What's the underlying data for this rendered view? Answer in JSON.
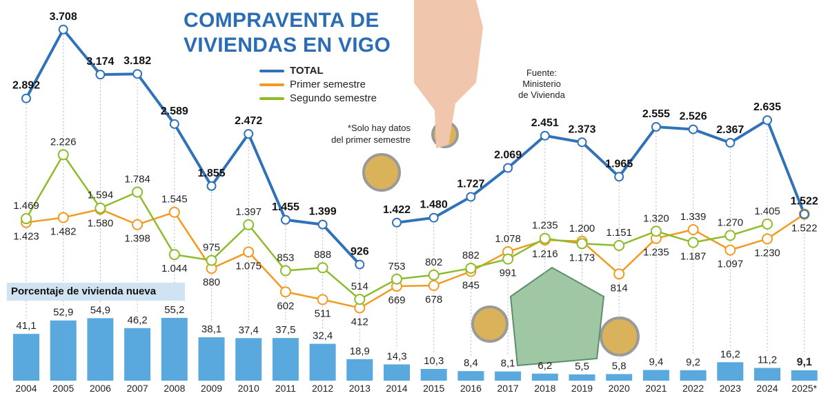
{
  "title_line1": "COMPRAVENTA DE",
  "title_line2": "VIVIENDAS EN VIGO",
  "source": [
    "Fuente:",
    "Ministerio",
    "de Vivienda"
  ],
  "note": [
    "*Solo hay datos",
    "del primer semestre"
  ],
  "colors": {
    "total": "#2f72b8",
    "primer": "#f29a1f",
    "segundo": "#8cbc2a",
    "bars": "#5aa9de",
    "title": "#2b6db5"
  },
  "chart_data": [
    {
      "type": "line",
      "title": "COMPRAVENTA DE VIVIENDAS EN VIGO",
      "categories": [
        "2004",
        "2005",
        "2006",
        "2007",
        "2008",
        "2009",
        "2010",
        "2011",
        "2012",
        "2013",
        "2014",
        "2015",
        "2016",
        "2017",
        "2018",
        "2019",
        "2020",
        "2021",
        "2022",
        "2023",
        "2024",
        "2025*"
      ],
      "legend_position": "top-center",
      "grid": false,
      "series": [
        {
          "name": "TOTAL",
          "labels": [
            "2.892",
            "3.708",
            "3.174",
            "3.182",
            "2.589",
            "1.855",
            "2.472",
            "1.455",
            "1.399",
            "926",
            "1.422",
            "1.480",
            "1.727",
            "2.069",
            "2.451",
            "2.373",
            "1.965",
            "2.555",
            "2.526",
            "2.367",
            "2.635",
            "1.522"
          ],
          "values": [
            2892,
            3708,
            3174,
            3182,
            2589,
            1855,
            2472,
            1455,
            1399,
            926,
            1422,
            1480,
            1727,
            2069,
            2451,
            2373,
            1965,
            2555,
            2526,
            2367,
            2635,
            1522
          ]
        },
        {
          "name": "Primer semestre",
          "labels": [
            "1.423",
            "1.482",
            "1.580",
            "1.398",
            "1.545",
            "880",
            "1.075",
            "602",
            "511",
            "412",
            "669",
            "678",
            "845",
            "1.078",
            "1.216",
            "1.200",
            "814",
            "1.235",
            "1.339",
            "1.097",
            "1.230",
            "1.522"
          ],
          "values": [
            1423,
            1482,
            1580,
            1398,
            1545,
            880,
            1075,
            602,
            511,
            412,
            669,
            678,
            845,
            1078,
            1216,
            1200,
            814,
            1235,
            1339,
            1097,
            1230,
            1522
          ]
        },
        {
          "name": "Segundo semestre",
          "labels": [
            "1.469",
            "2.226",
            "1.594",
            "1.784",
            "1.044",
            "975",
            "1.397",
            "853",
            "888",
            "514",
            "753",
            "802",
            "882",
            "991",
            "1.235",
            "1.173",
            "1.151",
            "1.320",
            "1.187",
            "1.270",
            "1.405",
            null
          ],
          "values": [
            1469,
            2226,
            1594,
            1784,
            1044,
            975,
            1397,
            853,
            888,
            514,
            753,
            802,
            882,
            991,
            1235,
            1173,
            1151,
            1320,
            1187,
            1270,
            1405,
            null
          ]
        }
      ]
    },
    {
      "type": "bar",
      "title": "Porcentaje de vivienda nueva",
      "categories": [
        "2004",
        "2005",
        "2006",
        "2007",
        "2008",
        "2009",
        "2010",
        "2011",
        "2012",
        "2013",
        "2014",
        "2015",
        "2016",
        "2017",
        "2018",
        "2019",
        "2020",
        "2021",
        "2022",
        "2023",
        "2024",
        "2025*"
      ],
      "labels": [
        "41,1",
        "52,9",
        "54,9",
        "46,2",
        "55,2",
        "38,1",
        "37,4",
        "37,5",
        "32,4",
        "18,9",
        "14,3",
        "10,3",
        "8,4",
        "8,1",
        "6,2",
        "5,5",
        "5,8",
        "9,4",
        "9,2",
        "16,2",
        "11,2",
        "9,1"
      ],
      "values": [
        41.1,
        52.9,
        54.9,
        46.2,
        55.2,
        38.1,
        37.4,
        37.5,
        32.4,
        18.9,
        14.3,
        10.3,
        8.4,
        8.1,
        6.2,
        5.5,
        5.8,
        9.4,
        9.2,
        16.2,
        11.2,
        9.1
      ]
    }
  ]
}
